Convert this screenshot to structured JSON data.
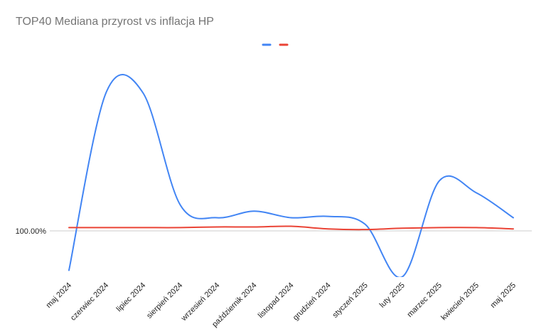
{
  "chart_data": {
    "type": "line",
    "title": "TOP40 Mediana przyrost vs inflacja HP",
    "categories": [
      "maj 2024",
      "czerwiec 2024",
      "lipiec 2024",
      "sierpień 2024",
      "wrzesień 2024",
      "październik 2024",
      "listopad 2024",
      "grudzień 2024",
      "styczeń 2025",
      "luty 2025",
      "marzec 2025",
      "kwiecień 2025",
      "maj 2025"
    ],
    "series": [
      {
        "color": "#4285f4",
        "values": [
          99.7,
          101.05,
          101.05,
          100.2,
          100.1,
          100.15,
          100.1,
          100.11,
          100.05,
          99.65,
          100.38,
          100.29,
          100.1
        ]
      },
      {
        "color": "#ea4335",
        "values": [
          100.025,
          100.025,
          100.025,
          100.025,
          100.03,
          100.03,
          100.035,
          100.015,
          100.01,
          100.02,
          100.025,
          100.025,
          100.015
        ]
      }
    ],
    "y_tick_labels": [
      "100.00%"
    ],
    "y_tick_values": [
      100.0
    ],
    "legend_position": "top",
    "grid": false
  }
}
